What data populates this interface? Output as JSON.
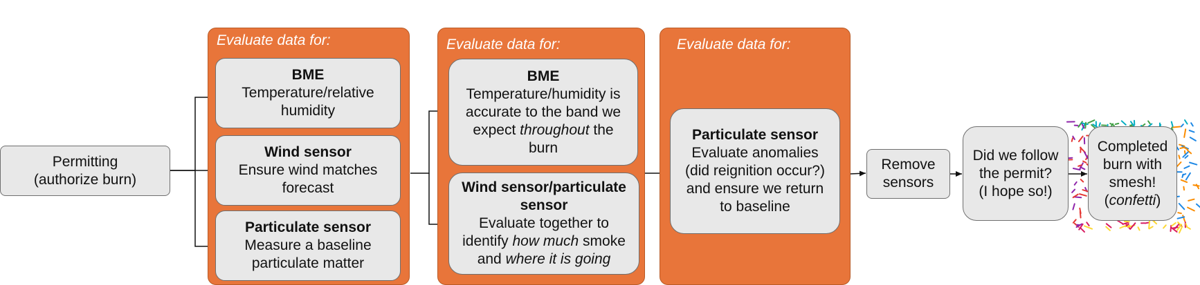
{
  "permitting": {
    "line1": "Permitting",
    "line2": "(authorize burn)"
  },
  "panel1": {
    "title": "Evaluate data for:",
    "bme": {
      "title": "BME",
      "line1": "Temperature/relative",
      "line2": "humidity"
    },
    "wind": {
      "title": "Wind sensor",
      "line1": "Ensure wind matches",
      "line2": "forecast"
    },
    "particulate": {
      "title": "Particulate sensor",
      "line1": "Measure a baseline",
      "line2": "particulate matter"
    }
  },
  "panel2": {
    "title": "Evaluate data for:",
    "bme": {
      "title": "BME",
      "line1": "Temperature/humidity is",
      "line2": "accurate to the band we",
      "line3_pre": "expect ",
      "line3_em": "throughout",
      "line3_post": " the",
      "line4": "burn"
    },
    "windpart": {
      "title1": "Wind sensor/particulate",
      "title2": "sensor",
      "line1": "Evaluate together to",
      "line2_pre": "identify ",
      "line2_em": "how much",
      "line2_post": " smoke",
      "line3_pre": "and ",
      "line3_em": "where it is going"
    }
  },
  "panel3": {
    "title": "Evaluate data for:",
    "particulate": {
      "title": "Particulate sensor",
      "line1": "Evaluate anomalies",
      "line2": "(did reignition occur?)",
      "line3": "and ensure we return",
      "line4": "to baseline"
    }
  },
  "remove": {
    "line1": "Remove",
    "line2": "sensors"
  },
  "permit_check": {
    "line1": "Did we follow",
    "line2": "the permit?",
    "line3": "(I hope so!)"
  },
  "completed": {
    "line1": "Completed",
    "line2": "burn with",
    "line3": "smesh!",
    "line4_pre": "(",
    "line4_em": "confetti",
    "line4_post": ")"
  },
  "colors": {
    "panel": "#e8753a",
    "box": "#e8e8e8",
    "confetti": [
      "#e53935",
      "#1e88e5",
      "#43a047",
      "#fdd835",
      "#8e24aa",
      "#fb8c00",
      "#00acc1",
      "#d81b60"
    ]
  }
}
